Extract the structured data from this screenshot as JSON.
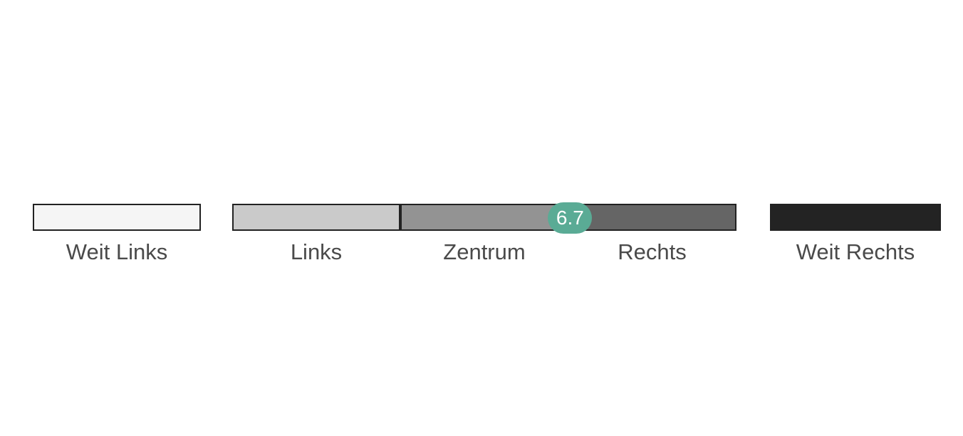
{
  "chart_data": {
    "type": "bar",
    "categories": [
      "Weit Links",
      "Links",
      "Zentrum",
      "Rechts",
      "Weit Rechts"
    ],
    "colors": [
      "#f5f5f5",
      "#cacaca",
      "#939393",
      "#656565",
      "#232323"
    ],
    "scale_range": [
      0,
      10
    ],
    "value": 6.7,
    "value_label": "6.7",
    "marker_color": "#5aab95"
  }
}
